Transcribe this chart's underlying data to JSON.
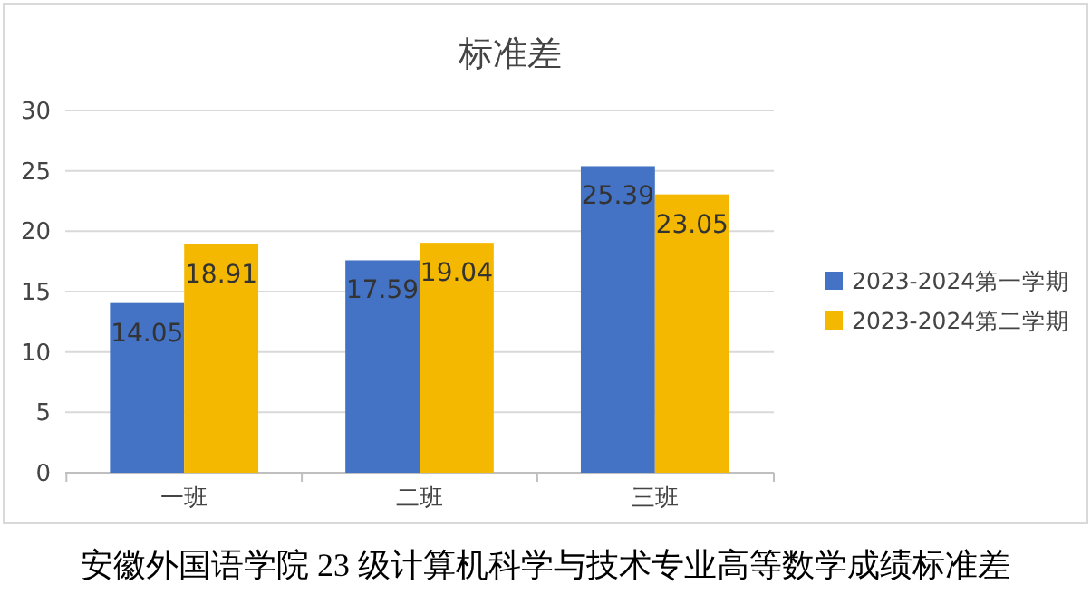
{
  "chart_data": {
    "type": "bar",
    "title": "标准差",
    "categories": [
      "一班",
      "二班",
      "三班"
    ],
    "series": [
      {
        "name": "2023-2024第一学期",
        "color": "#4472c4",
        "values": [
          14.05,
          17.59,
          25.39
        ]
      },
      {
        "name": "2023-2024第二学期",
        "color": "#f5b800",
        "values": [
          18.91,
          19.04,
          23.05
        ]
      }
    ],
    "ylim": [
      0,
      30
    ],
    "yticks": [
      0,
      5,
      10,
      15,
      20,
      25,
      30
    ],
    "grid": "y",
    "legend": "right",
    "data_labels": true,
    "annotations": [
      "安徽外国语学院 23 级计算机科学与技术专业高等数学成绩标准差"
    ]
  }
}
